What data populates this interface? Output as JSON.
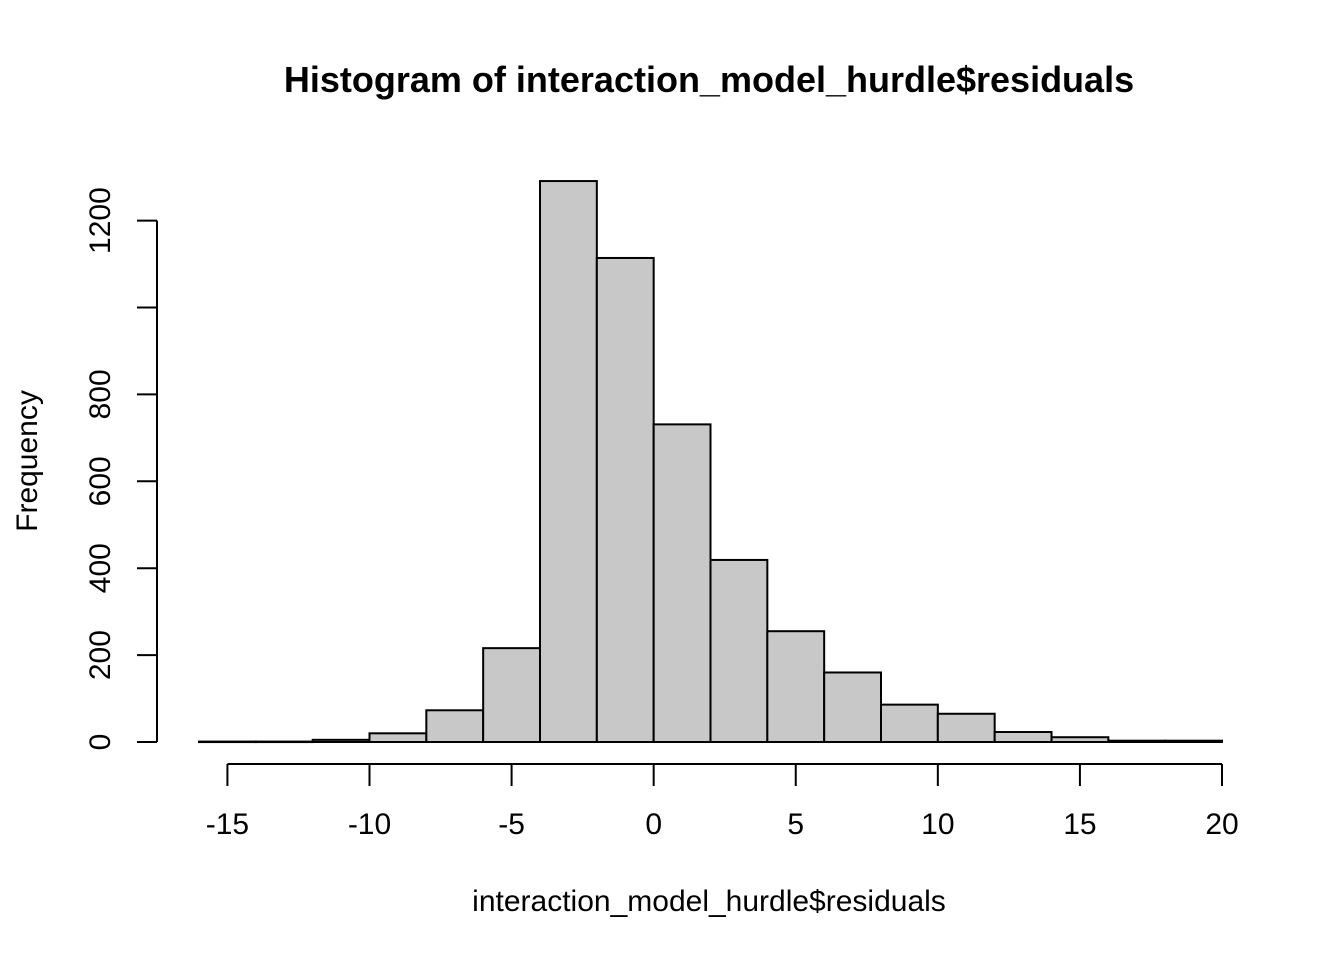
{
  "chart_data": {
    "type": "bar",
    "title": "Histogram of interaction_model_hurdle$residuals",
    "xlabel": "interaction_model_hurdle$residuals",
    "ylabel": "Frequency",
    "bin_edges": [
      -16,
      -14,
      -12,
      -10,
      -8,
      -6,
      -4,
      -2,
      0,
      2,
      4,
      6,
      8,
      10,
      12,
      14,
      16,
      18,
      20
    ],
    "values": [
      1,
      1,
      5,
      20,
      73,
      216,
      1291,
      1114,
      731,
      419,
      255,
      160,
      86,
      65,
      23,
      11,
      3,
      3
    ],
    "xlim": [
      -16,
      20
    ],
    "ylim": [
      0,
      1300
    ],
    "x_ticks": [
      -15,
      -10,
      -5,
      0,
      5,
      10,
      15,
      20
    ],
    "x_tick_labels": [
      "-15",
      "-10",
      "-5",
      "0",
      "5",
      "10",
      "15",
      "20"
    ],
    "y_ticks": [
      0,
      200,
      400,
      600,
      800,
      1000,
      1200
    ],
    "y_tick_labels": [
      "0",
      "200",
      "400",
      "600",
      "800",
      "",
      "1200"
    ],
    "bar_color": "#c8c8c8",
    "grid": false,
    "legend": "none"
  }
}
